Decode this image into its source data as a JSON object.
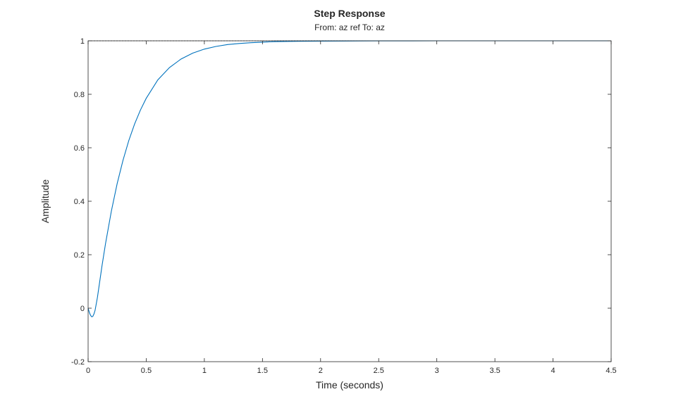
{
  "chart_data": {
    "type": "line",
    "title": "Step Response",
    "subtitle": "From: az ref  To: az",
    "xlabel": "Time (seconds)",
    "ylabel": "Amplitude",
    "xlim": [
      0,
      4.5
    ],
    "ylim": [
      -0.2,
      1
    ],
    "xticks": [
      0,
      0.5,
      1,
      1.5,
      2,
      2.5,
      3,
      3.5,
      4,
      4.5
    ],
    "xtick_labels": [
      "0",
      "0.5",
      "1",
      "1.5",
      "2",
      "2.5",
      "3",
      "3.5",
      "4",
      "4.5"
    ],
    "yticks": [
      -0.2,
      0,
      0.2,
      0.4,
      0.6,
      0.8,
      1
    ],
    "ytick_labels": [
      "-0.2",
      "0",
      "0.2",
      "0.4",
      "0.6",
      "0.8",
      "1"
    ],
    "grid": false,
    "final_value": 1,
    "series": [
      {
        "color": "#0072bd",
        "x": [
          0,
          0.01,
          0.02,
          0.03,
          0.04,
          0.05,
          0.06,
          0.08,
          0.1,
          0.12,
          0.15,
          0.2,
          0.25,
          0.3,
          0.35,
          0.4,
          0.45,
          0.5,
          0.6,
          0.7,
          0.8,
          0.9,
          1.0,
          1.1,
          1.2,
          1.3,
          1.4,
          1.5,
          1.6,
          1.8,
          2.0,
          2.2,
          2.5,
          2.8,
          3.0,
          3.2,
          3.5,
          3.8,
          4.0,
          4.3,
          4.5
        ],
        "y": [
          0,
          -0.015,
          -0.026,
          -0.032,
          -0.031,
          -0.022,
          -0.008,
          0.04,
          0.1,
          0.16,
          0.242,
          0.363,
          0.466,
          0.553,
          0.627,
          0.689,
          0.741,
          0.785,
          0.854,
          0.9,
          0.932,
          0.954,
          0.969,
          0.979,
          0.986,
          0.99,
          0.993,
          0.995,
          0.997,
          0.998,
          0.9989,
          0.9993,
          0.9997,
          0.9999,
          1.0,
          1.0,
          1.0,
          1.0,
          1.0,
          1.0,
          1.0
        ]
      }
    ]
  }
}
